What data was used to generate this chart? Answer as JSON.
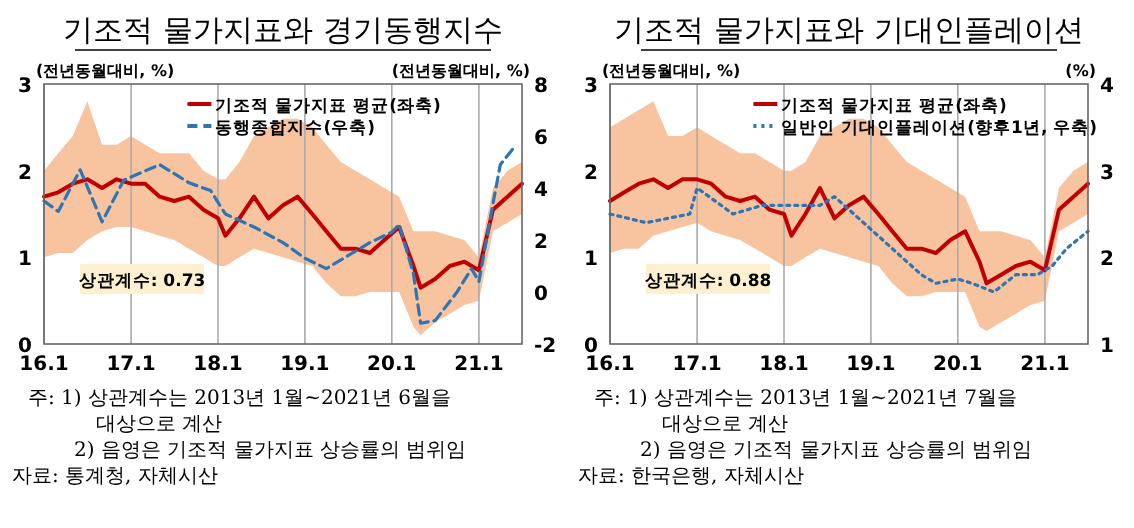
{
  "chart_data": [
    {
      "type": "line",
      "title": "기조적 물가지표와 경기동행지수",
      "ylabel": "(전년동월대비, %)",
      "y2label": "(전년동월대비, %)",
      "xlim": [
        "2016-01",
        "2021-07"
      ],
      "xticks": [
        {
          "value": "2016-01",
          "label": "16.1"
        },
        {
          "value": "2017-01",
          "label": "17.1"
        },
        {
          "value": "2018-01",
          "label": "18.1"
        },
        {
          "value": "2019-01",
          "label": "19.1"
        },
        {
          "value": "2020-01",
          "label": "20.1"
        },
        {
          "value": "2021-01",
          "label": "21.1"
        }
      ],
      "ylim": [
        0,
        3
      ],
      "yticks": [
        0,
        1,
        2,
        3
      ],
      "y2lim": [
        -2,
        8
      ],
      "y2ticks": [
        -2,
        0,
        2,
        4,
        6,
        8
      ],
      "grid": "x",
      "legend": "top right",
      "series": [
        {
          "name": "기조적 물가지표 평균(좌축)",
          "color": "#c00000",
          "line_style": "solid",
          "x": [
            "2016-01",
            "2016-03",
            "2016-05",
            "2016-07",
            "2016-09",
            "2016-11",
            "2017-01",
            "2017-03",
            "2017-05",
            "2017-07",
            "2017-09",
            "2017-11",
            "2018-01",
            "2018-02",
            "2018-04",
            "2018-06",
            "2018-08",
            "2018-10",
            "2018-12",
            "2019-02",
            "2019-04",
            "2019-06",
            "2019-08",
            "2019-10",
            "2019-12",
            "2020-02",
            "2020-04",
            "2020-05",
            "2020-07",
            "2020-09",
            "2020-11",
            "2021-01",
            "2021-03",
            "2021-05",
            "2021-07"
          ],
          "values": [
            1.7,
            1.75,
            1.85,
            1.9,
            1.8,
            1.9,
            1.85,
            1.85,
            1.7,
            1.65,
            1.7,
            1.55,
            1.45,
            1.25,
            1.45,
            1.7,
            1.45,
            1.6,
            1.7,
            1.5,
            1.3,
            1.1,
            1.1,
            1.05,
            1.2,
            1.35,
            0.9,
            0.65,
            0.75,
            0.9,
            0.95,
            0.85,
            1.55,
            1.7,
            1.85
          ],
          "lower": [
            1.0,
            1.05,
            1.05,
            1.2,
            1.3,
            1.35,
            1.35,
            1.3,
            1.25,
            1.2,
            1.1,
            1.0,
            0.9,
            0.9,
            1.0,
            1.1,
            1.05,
            1.0,
            0.95,
            0.9,
            0.7,
            0.55,
            0.55,
            0.6,
            0.6,
            0.6,
            0.2,
            0.1,
            0.25,
            0.35,
            0.45,
            0.5,
            1.3,
            1.4,
            1.5
          ],
          "upper": [
            2.0,
            2.2,
            2.4,
            2.8,
            2.3,
            2.3,
            2.4,
            2.3,
            2.2,
            2.2,
            2.2,
            2.0,
            1.9,
            1.9,
            2.1,
            2.4,
            2.5,
            2.6,
            2.6,
            2.5,
            2.3,
            2.1,
            2.0,
            1.9,
            1.8,
            1.7,
            1.3,
            1.3,
            1.3,
            1.25,
            1.2,
            1.0,
            1.8,
            2.0,
            2.1
          ]
        },
        {
          "name": "동행종합지수(우축)",
          "color": "#2e75b6",
          "axis": "y2",
          "line_style": "dashed",
          "x": [
            "2016-01",
            "2016-03",
            "2016-06",
            "2016-09",
            "2016-12",
            "2017-05",
            "2017-09",
            "2017-12",
            "2018-02",
            "2018-06",
            "2018-10",
            "2019-01",
            "2019-04",
            "2019-07",
            "2019-10",
            "2020-01",
            "2020-02",
            "2020-04",
            "2020-05",
            "2020-07",
            "2020-10",
            "2020-12",
            "2021-01",
            "2021-03",
            "2021-04",
            "2021-06"
          ],
          "values": [
            3.5,
            3.1,
            4.7,
            2.7,
            4.3,
            4.9,
            4.2,
            3.9,
            3.0,
            2.5,
            1.9,
            1.3,
            0.9,
            1.4,
            1.9,
            2.3,
            2.6,
            0.7,
            -1.2,
            -1.1,
            0.0,
            0.9,
            0.4,
            3.4,
            4.9,
            5.6
          ]
        }
      ],
      "annotations": [
        "상관계수: 0.73",
        "주: 1) 상관계수는 2013년 1월~2021년 6월을 대상으로 계산",
        "2) 음영은 기조적 물가지표 상승률의 범위임",
        "자료: 통계청, 자체시산"
      ]
    },
    {
      "type": "line",
      "title": "기조적 물가지표와 기대인플레이션",
      "ylabel": "(전년동월대비, %)",
      "y2label": "(%)",
      "xlim": [
        "2016-01",
        "2021-07"
      ],
      "xticks": [
        {
          "value": "2016-01",
          "label": "16.1"
        },
        {
          "value": "2017-01",
          "label": "17.1"
        },
        {
          "value": "2018-01",
          "label": "18.1"
        },
        {
          "value": "2019-01",
          "label": "19.1"
        },
        {
          "value": "2020-01",
          "label": "20.1"
        },
        {
          "value": "2021-01",
          "label": "21.1"
        }
      ],
      "ylim": [
        0,
        3
      ],
      "yticks": [
        0,
        1,
        2,
        3
      ],
      "y2lim": [
        1,
        4
      ],
      "y2ticks": [
        1,
        2,
        3,
        4
      ],
      "grid": "x",
      "legend": "top right",
      "series": [
        {
          "name": "기조적 물가지표 평균(좌축)",
          "color": "#c00000",
          "line_style": "solid",
          "x": [
            "2016-01",
            "2016-03",
            "2016-05",
            "2016-07",
            "2016-09",
            "2016-11",
            "2017-01",
            "2017-03",
            "2017-05",
            "2017-07",
            "2017-09",
            "2017-11",
            "2018-01",
            "2018-02",
            "2018-04",
            "2018-06",
            "2018-08",
            "2018-10",
            "2018-12",
            "2019-02",
            "2019-04",
            "2019-06",
            "2019-08",
            "2019-10",
            "2019-12",
            "2020-02",
            "2020-04",
            "2020-05",
            "2020-07",
            "2020-09",
            "2020-11",
            "2021-01",
            "2021-03",
            "2021-05",
            "2021-07"
          ],
          "values": [
            1.65,
            1.75,
            1.85,
            1.9,
            1.8,
            1.9,
            1.9,
            1.85,
            1.7,
            1.65,
            1.7,
            1.55,
            1.5,
            1.25,
            1.5,
            1.8,
            1.45,
            1.6,
            1.7,
            1.5,
            1.3,
            1.1,
            1.1,
            1.05,
            1.2,
            1.3,
            0.95,
            0.7,
            0.8,
            0.9,
            0.95,
            0.85,
            1.55,
            1.7,
            1.85
          ],
          "lower": [
            1.05,
            1.1,
            1.1,
            1.25,
            1.3,
            1.35,
            1.4,
            1.3,
            1.25,
            1.2,
            1.1,
            1.0,
            0.9,
            0.9,
            1.0,
            1.1,
            1.05,
            1.0,
            0.95,
            0.9,
            0.7,
            0.55,
            0.55,
            0.6,
            0.6,
            0.6,
            0.2,
            0.15,
            0.25,
            0.35,
            0.45,
            0.5,
            1.3,
            1.4,
            1.5
          ],
          "upper": [
            2.5,
            2.6,
            2.7,
            2.8,
            2.4,
            2.4,
            2.5,
            2.4,
            2.3,
            2.2,
            2.2,
            2.1,
            2.0,
            2.0,
            2.1,
            2.4,
            2.5,
            2.6,
            2.6,
            2.5,
            2.3,
            2.1,
            2.0,
            1.9,
            1.8,
            1.7,
            1.3,
            1.3,
            1.3,
            1.25,
            1.2,
            1.0,
            1.8,
            2.0,
            2.1
          ]
        },
        {
          "name": "일반인 기대인플레이션(향후1년, 우축)",
          "color": "#2e75b6",
          "axis": "y2",
          "line_style": "dotted",
          "x": [
            "2016-01",
            "2016-06",
            "2016-12",
            "2017-01",
            "2017-06",
            "2017-10",
            "2018-01",
            "2018-06",
            "2018-08",
            "2018-12",
            "2019-04",
            "2019-08",
            "2019-10",
            "2020-01",
            "2020-03",
            "2020-06",
            "2020-09",
            "2020-12",
            "2021-02",
            "2021-04",
            "2021-07"
          ],
          "values": [
            2.5,
            2.4,
            2.5,
            2.8,
            2.5,
            2.6,
            2.6,
            2.6,
            2.7,
            2.4,
            2.1,
            1.8,
            1.7,
            1.75,
            1.7,
            1.6,
            1.8,
            1.8,
            1.9,
            2.1,
            2.3
          ]
        }
      ],
      "annotations": [
        "상관계수: 0.88",
        "주: 1) 상관계수는 2013년 1월~2021년 7월을 대상으로 계산",
        "2) 음영은 기조적 물가지표 상승률의 범위임",
        "자료: 한국은행, 자체시산"
      ]
    }
  ]
}
